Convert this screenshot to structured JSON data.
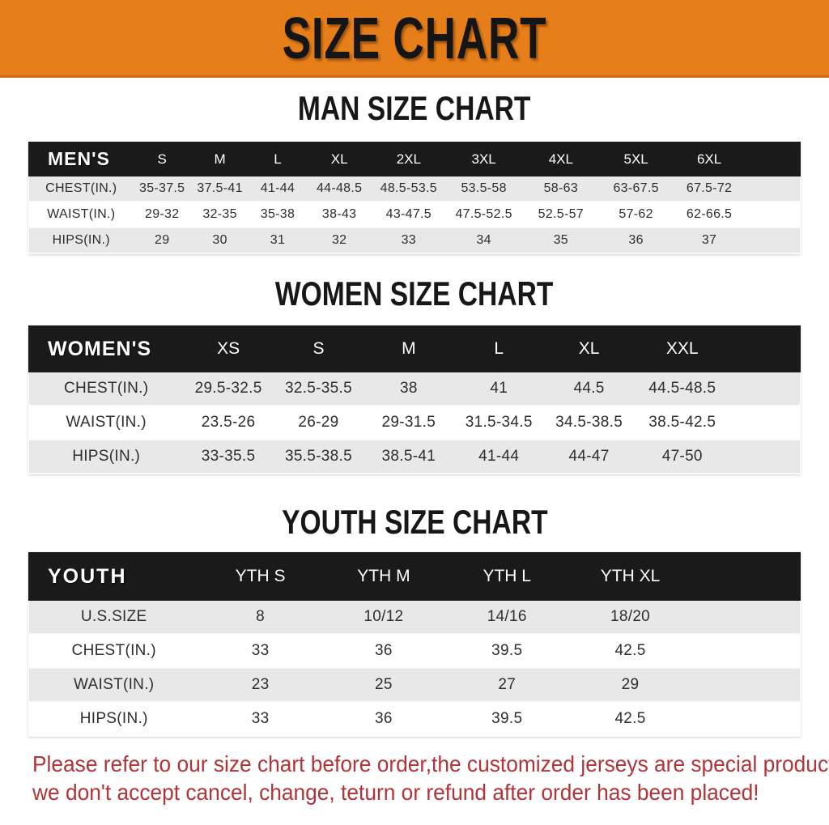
{
  "banner": {
    "title": "SIZE CHART"
  },
  "sections": [
    {
      "id": "men",
      "title": "MAN SIZE CHART",
      "header": {
        "label": "MEN'S",
        "sizes": [
          "S",
          "M",
          "L",
          "XL",
          "2XL",
          "3XL",
          "4XL",
          "5XL",
          "6XL"
        ]
      },
      "rows": [
        {
          "label": "CHEST(IN.)",
          "values": [
            "35-37.5",
            "37.5-41",
            "41-44",
            "44-48.5",
            "48.5-53.5",
            "53.5-58",
            "58-63",
            "63-67.5",
            "67.5-72"
          ]
        },
        {
          "label": "WAIST(IN.)",
          "values": [
            "29-32",
            "32-35",
            "35-38",
            "38-43",
            "43-47.5",
            "47.5-52.5",
            "52.5-57",
            "57-62",
            "62-66.5"
          ]
        },
        {
          "label": "HIPS(IN.)",
          "values": [
            "29",
            "30",
            "31",
            "32",
            "33",
            "34",
            "35",
            "36",
            "37"
          ]
        }
      ]
    },
    {
      "id": "women",
      "title": "WOMEN SIZE CHART",
      "header": {
        "label": "WOMEN'S",
        "sizes": [
          "XS",
          "S",
          "M",
          "L",
          "XL",
          "XXL"
        ]
      },
      "rows": [
        {
          "label": "CHEST(IN.)",
          "values": [
            "29.5-32.5",
            "32.5-35.5",
            "38",
            "41",
            "44.5",
            "44.5-48.5"
          ]
        },
        {
          "label": "WAIST(IN.)",
          "values": [
            "23.5-26",
            "26-29",
            "29-31.5",
            "31.5-34.5",
            "34.5-38.5",
            "38.5-42.5"
          ]
        },
        {
          "label": "HIPS(IN.)",
          "values": [
            "33-35.5",
            "35.5-38.5",
            "38.5-41",
            "41-44",
            "44-47",
            "47-50"
          ]
        }
      ]
    },
    {
      "id": "youth",
      "title": "YOUTH SIZE CHART",
      "header": {
        "label": "YOUTH",
        "sizes": [
          "YTH S",
          "YTH M",
          "YTH L",
          "YTH XL"
        ]
      },
      "rows": [
        {
          "label": "U.S.SIZE",
          "values": [
            "8",
            "10/12",
            "14/16",
            "18/20"
          ]
        },
        {
          "label": "CHEST(IN.)",
          "values": [
            "33",
            "36",
            "39.5",
            "42.5"
          ]
        },
        {
          "label": "WAIST(IN.)",
          "values": [
            "23",
            "25",
            "27",
            "29"
          ]
        },
        {
          "label": "HIPS(IN.)",
          "values": [
            "33",
            "36",
            "39.5",
            "42.5"
          ]
        }
      ]
    }
  ],
  "footer": {
    "line1": "Please refer to our size chart before order,the customized jerseys are special products,",
    "line2": "we don't accept cancel, change, teturn or refund after order has been placed!"
  },
  "colors": {
    "banner_bg": "#e67e1a",
    "banner_edge": "#d06a0e",
    "banner_text": "#151515",
    "header_bar_bg": "#1a1a1a",
    "header_bar_text": "#ffffff",
    "stripe_bg": "#e8e8e8",
    "cell_text": "#2e2e2e",
    "title_color": "#171717",
    "notice_color": "#b23338"
  }
}
